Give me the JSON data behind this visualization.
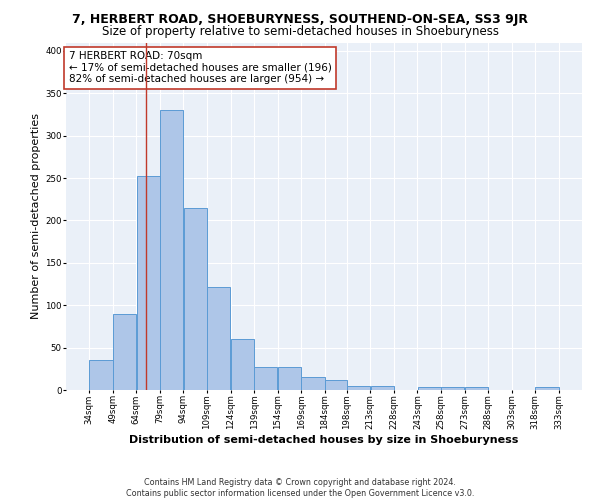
{
  "title_line1": "7, HERBERT ROAD, SHOEBURYNESS, SOUTHEND-ON-SEA, SS3 9JR",
  "title_line2": "Size of property relative to semi-detached houses in Shoeburyness",
  "xlabel": "Distribution of semi-detached houses by size in Shoeburyness",
  "ylabel": "Number of semi-detached properties",
  "footer_line1": "Contains HM Land Registry data © Crown copyright and database right 2024.",
  "footer_line2": "Contains public sector information licensed under the Open Government Licence v3.0.",
  "annotation_title": "7 HERBERT ROAD: 70sqm",
  "annotation_line1": "← 17% of semi-detached houses are smaller (196)",
  "annotation_line2": "82% of semi-detached houses are larger (954) →",
  "bar_left_edges": [
    34,
    49,
    64,
    79,
    94,
    109,
    124,
    139,
    154,
    169,
    184,
    198,
    213,
    228,
    243,
    258,
    273,
    288,
    303,
    318
  ],
  "bar_widths": [
    15,
    15,
    15,
    15,
    15,
    15,
    15,
    15,
    15,
    15,
    14,
    15,
    15,
    15,
    15,
    15,
    15,
    15,
    15,
    15
  ],
  "bar_heights": [
    35,
    90,
    253,
    330,
    215,
    122,
    60,
    27,
    27,
    15,
    12,
    5,
    5,
    0,
    3,
    3,
    3,
    0,
    0,
    3
  ],
  "bar_color": "#aec6e8",
  "bar_edge_color": "#5b9bd5",
  "red_line_x": 70,
  "red_line_color": "#c0392b",
  "ylim": [
    0,
    410
  ],
  "yticks": [
    0,
    50,
    100,
    150,
    200,
    250,
    300,
    350,
    400
  ],
  "xtick_labels": [
    "34sqm",
    "49sqm",
    "64sqm",
    "79sqm",
    "94sqm",
    "109sqm",
    "124sqm",
    "139sqm",
    "154sqm",
    "169sqm",
    "184sqm",
    "198sqm",
    "213sqm",
    "228sqm",
    "243sqm",
    "258sqm",
    "273sqm",
    "288sqm",
    "303sqm",
    "318sqm",
    "333sqm"
  ],
  "xtick_positions": [
    34,
    49,
    64,
    79,
    94,
    109,
    124,
    139,
    154,
    169,
    184,
    198,
    213,
    228,
    243,
    258,
    273,
    288,
    303,
    318,
    333
  ],
  "bg_color": "#eaf0f8",
  "grid_color": "#ffffff",
  "fig_bg_color": "#ffffff",
  "annotation_box_color": "#ffffff",
  "annotation_box_edge_color": "#c0392b",
  "title_fontsize": 9,
  "subtitle_fontsize": 8.5,
  "ylabel_fontsize": 8,
  "xlabel_fontsize": 8,
  "annotation_fontsize": 7.5,
  "footer_fontsize": 5.8,
  "tick_fontsize": 6.2
}
